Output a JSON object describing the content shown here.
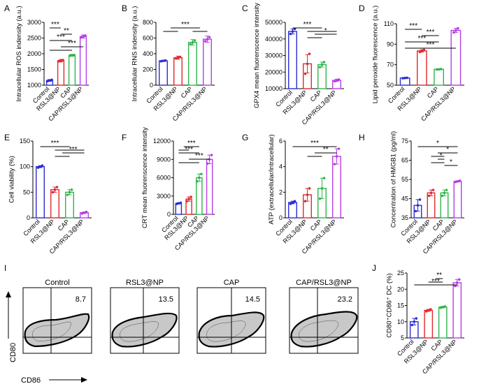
{
  "colors": {
    "blue": "#2b2bd6",
    "red": "#e0282e",
    "green": "#2fb54a",
    "purple": "#b43ee6",
    "black": "#000000"
  },
  "categories": [
    "Control",
    "RSL3@NP",
    "CAP",
    "CAP/RSL3@NP"
  ],
  "chart_data": [
    {
      "panel": "A",
      "type": "bar",
      "ylabel": "Intracellular ROS indensity (a.u.)",
      "ylim": [
        1000,
        3000
      ],
      "ticks": [
        1000,
        1500,
        2000,
        2500,
        3000
      ],
      "values": [
        1150,
        1780,
        1950,
        2550
      ],
      "errors": [
        30,
        40,
        30,
        50
      ],
      "points": [
        [
          1130,
          1150,
          1170
        ],
        [
          1760,
          1780,
          1800
        ],
        [
          1940,
          1950,
          1960
        ],
        [
          2520,
          2550,
          2580
        ]
      ],
      "sig": [
        {
          "a": 0,
          "b": 1,
          "label": "***"
        },
        {
          "a": 1,
          "b": 2,
          "label": "**"
        },
        {
          "a": 0,
          "b": 2,
          "label": "***"
        },
        {
          "a": 0,
          "b": 3,
          "label": "***",
          "group": [
            0,
            2
          ]
        }
      ]
    },
    {
      "panel": "B",
      "type": "bar",
      "ylabel": "Intracellular RNS indensity (a.u.)",
      "ylim": [
        0,
        800
      ],
      "ticks": [
        0,
        200,
        400,
        600,
        800
      ],
      "values": [
        310,
        350,
        545,
        585
      ],
      "errors": [
        8,
        20,
        35,
        40
      ],
      "points": [
        [
          305,
          310,
          315
        ],
        [
          340,
          350,
          360
        ],
        [
          520,
          545,
          570
        ],
        [
          560,
          585,
          610
        ]
      ],
      "sig": [
        {
          "a": 0,
          "b": 2,
          "label": "***",
          "group": [
            0,
            1
          ],
          "group2": [
            2,
            3
          ]
        }
      ]
    },
    {
      "panel": "C",
      "type": "bar",
      "ylabel": "GPX4 mean fluorenscence intensity",
      "ylim": [
        10000,
        50000
      ],
      "ticks": [
        10000,
        20000,
        30000,
        40000,
        50000
      ],
      "values": [
        44500,
        25000,
        24500,
        15000
      ],
      "errors": [
        1500,
        5500,
        1500,
        700
      ],
      "points": [
        [
          43000,
          44500,
          46000
        ],
        [
          19000,
          25000,
          31000
        ],
        [
          23000,
          24500,
          26000
        ],
        [
          14500,
          15000,
          15500
        ]
      ],
      "sig": [
        {
          "a": 0,
          "b": 3,
          "label": "***",
          "group2": [
            1,
            3
          ]
        },
        {
          "a": 1,
          "b": 3,
          "label": "*",
          "group": [
            1,
            2
          ]
        }
      ]
    },
    {
      "panel": "D",
      "type": "bar",
      "ylabel": "Lipid peroxide fluorescence (a.u.)",
      "ylim": [
        50,
        110
      ],
      "ticks": [
        50,
        70,
        90,
        110
      ],
      "values": [
        57,
        83.5,
        65.5,
        103.5
      ],
      "errors": [
        0.5,
        1.2,
        0.5,
        2
      ],
      "points": [
        [
          56.8,
          57,
          57.2
        ],
        [
          82.5,
          83.5,
          84.5
        ],
        [
          65.3,
          65.5,
          65.7
        ],
        [
          101.5,
          103.5,
          105.5
        ]
      ],
      "sig": [
        {
          "a": 0,
          "b": 1,
          "label": "***"
        },
        {
          "a": 1,
          "b": 2,
          "label": "***"
        },
        {
          "a": 0,
          "b": 2,
          "label": "***"
        },
        {
          "a": 0,
          "b": 3,
          "label": "***"
        }
      ]
    },
    {
      "panel": "E",
      "type": "bar",
      "ylabel": "Cell viability (%)",
      "ylim": [
        0,
        150
      ],
      "ticks": [
        0,
        50,
        100,
        150
      ],
      "values": [
        100,
        55,
        50,
        10
      ],
      "errors": [
        2,
        5,
        5,
        1.5
      ],
      "points": [
        [
          98,
          100,
          102
        ],
        [
          50,
          55,
          60
        ],
        [
          45,
          50,
          55
        ],
        [
          8.5,
          10,
          11.5
        ]
      ],
      "sig": [
        {
          "a": 0,
          "b": 3,
          "label": "***",
          "group2": [
            1,
            3
          ]
        },
        {
          "a": 1,
          "b": 3,
          "label": "***",
          "group": [
            1,
            2
          ]
        }
      ]
    },
    {
      "panel": "F",
      "type": "bar",
      "ylabel": "CRT mean fluorenscence intensity",
      "ylim": [
        0,
        12000
      ],
      "ticks": [
        0,
        3000,
        6000,
        9000,
        12000
      ],
      "values": [
        1800,
        2500,
        6000,
        9000
      ],
      "errors": [
        100,
        350,
        600,
        700
      ],
      "points": [
        [
          1700,
          1800,
          1900
        ],
        [
          2150,
          2500,
          2850
        ],
        [
          5400,
          6000,
          6600
        ],
        [
          8300,
          9000,
          9700
        ]
      ],
      "sig": [
        {
          "a": 1,
          "b": 2,
          "label": "***",
          "group": [
            0,
            1
          ]
        },
        {
          "a": 0,
          "b": 2,
          "label": "***"
        },
        {
          "a": 2,
          "b": 3,
          "label": "***",
          "group": [
            0,
            2
          ]
        }
      ]
    },
    {
      "panel": "G",
      "type": "bar",
      "ylabel": "ATP (extracellular/intracellular)",
      "ylim": [
        0,
        6
      ],
      "ticks": [
        0,
        2,
        4,
        6
      ],
      "values": [
        1.2,
        1.8,
        2.3,
        4.8
      ],
      "errors": [
        0.1,
        0.5,
        0.8,
        0.6
      ],
      "points": [
        [
          1.1,
          1.2,
          1.3
        ],
        [
          1.3,
          1.8,
          2.3
        ],
        [
          1.5,
          2.3,
          3.1
        ],
        [
          4.2,
          4.8,
          5.4
        ]
      ],
      "sig": [
        {
          "a": 0,
          "b": 3,
          "label": "***"
        },
        {
          "a": 1,
          "b": 3,
          "label": "**",
          "group": [
            1,
            2
          ]
        }
      ]
    },
    {
      "panel": "H",
      "type": "bar",
      "ylabel": "Concentration of HMGB1 (pg/ml)",
      "ylim": [
        35,
        75
      ],
      "ticks": [
        35,
        45,
        55,
        65,
        75
      ],
      "values": [
        41.5,
        48,
        48,
        54
      ],
      "errors": [
        3,
        1.5,
        1.5,
        0.3
      ],
      "points": [
        [
          38.5,
          41.5,
          44.5
        ],
        [
          46.5,
          48,
          49.5
        ],
        [
          46.5,
          48,
          49.5
        ],
        [
          53.7,
          54,
          54.3
        ]
      ],
      "sig": [
        {
          "a": 0,
          "b": 3,
          "label": "*"
        },
        {
          "a": 1,
          "b": 3,
          "label": "*",
          "group": [
            1,
            2
          ]
        },
        {
          "a": 0,
          "b": 2,
          "label": "*",
          "group": [
            1,
            2
          ]
        },
        {
          "a": 2,
          "b": 3,
          "label": "*"
        }
      ]
    },
    {
      "panel": "J",
      "type": "bar",
      "ylabel": "CD80⁺CD86⁺ DC (%)",
      "ylim": [
        5,
        25
      ],
      "ticks": [
        5,
        10,
        15,
        20,
        25
      ],
      "values": [
        10,
        13.5,
        14.5,
        22
      ],
      "errors": [
        1,
        0.3,
        0.2,
        1
      ],
      "points": [
        [
          9,
          10,
          11
        ],
        [
          13.2,
          13.5,
          13.8
        ],
        [
          14.3,
          14.5,
          14.7
        ],
        [
          21,
          22,
          23
        ]
      ],
      "sig": [
        {
          "a": 0,
          "b": 2,
          "label": "**",
          "group": [
            1,
            2
          ]
        },
        {
          "a": 0,
          "b": 3,
          "label": "***"
        }
      ]
    }
  ],
  "flow": {
    "panel": "I",
    "titles": [
      "Control",
      "RSL3@NP",
      "CAP",
      "CAP/RSL3@NP"
    ],
    "percents": [
      "8.7",
      "13.5",
      "14.5",
      "23.2"
    ],
    "ylabel": "CD80",
    "xlabel": "CD86"
  }
}
